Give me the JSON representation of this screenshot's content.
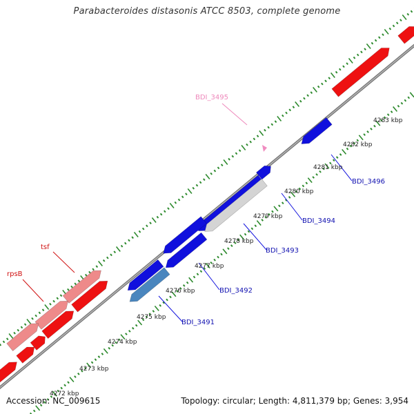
{
  "title": "Parabacteroides distasonis ATCC 8503, complete genome",
  "footer": {
    "accession": "Accession: NC_009615",
    "stats": "Topology: circular; Length: 4,811,379 bp; Genes: 3,954"
  },
  "colors": {
    "backbone": "#8a8a8a",
    "tick": "#2d8a2d",
    "gene_forward": "#ee1111",
    "gene_forward_light": "#ee8a8a",
    "gene_reverse": "#1010dd",
    "gene_steelblue": "#4a86be",
    "gene_grey": "#d4d4d4",
    "label_blue": "#1010b0",
    "label_red": "#d01010",
    "label_pink": "#ee88bb"
  },
  "tick_labels": [
    "4272 kbp",
    "4273 kbp",
    "4274 kbp",
    "4275 kbp",
    "4276 kbp",
    "4277 kbp",
    "4278 kbp",
    "4279 kbp",
    "4280 kbp",
    "4281 kbp",
    "4282 kbp",
    "4283 kbp"
  ],
  "gene_labels": [
    {
      "name": "BDI_3495",
      "color": "pink"
    },
    {
      "name": "BDI_3496",
      "color": "blue"
    },
    {
      "name": "BDI_3494",
      "color": "blue"
    },
    {
      "name": "BDI_3493",
      "color": "blue"
    },
    {
      "name": "BDI_3492",
      "color": "blue"
    },
    {
      "name": "BDI_3491",
      "color": "blue"
    },
    {
      "name": "tsf",
      "color": "red"
    },
    {
      "name": "rpsB",
      "color": "red"
    }
  ]
}
